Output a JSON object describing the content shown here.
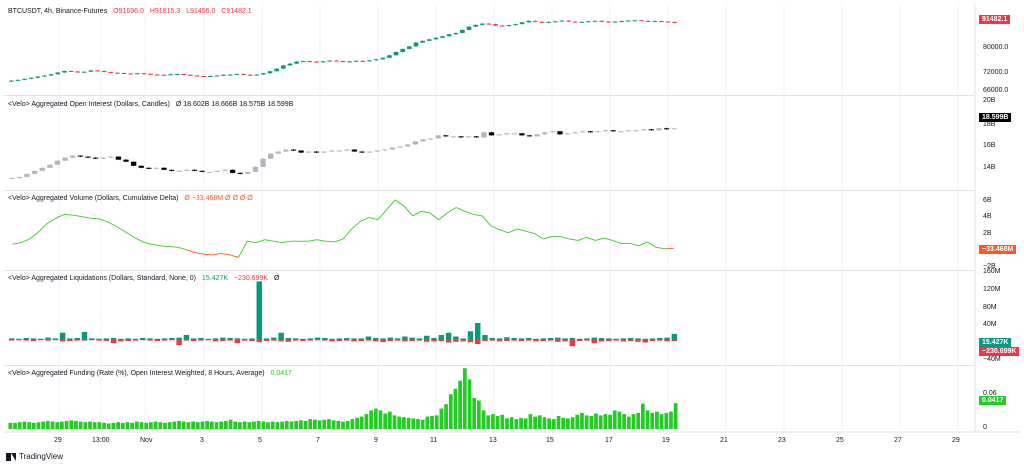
{
  "colors": {
    "up": "#089981",
    "down": "#f23645",
    "oi_up": "#b2b5be",
    "oi_down": "#000000",
    "delta": "#3bcc2a",
    "delta_neg": "#ff5722",
    "funding": "#22cc22",
    "liq_long": "#089981",
    "liq_short": "#f23645",
    "tag_delta": "#ff5722",
    "tag_funding": "#22cc22",
    "tag_oi": "#000000"
  },
  "header": {
    "symbol": "BTCUSDT, 4h, Binance-Futures",
    "o": "O91696.0",
    "h": "H91815.3",
    "l": "L91456.0",
    "c": "C91482.1"
  },
  "panes": {
    "oi_label": "<Velo> Aggregated Open Interest (Dollars, Candles)",
    "oi_values": "Ø  18.602B  18.666B  18.575B  18.599B",
    "vol_label": "<Velo> Aggregated Volume (Dollars, Cumulative Delta)",
    "vol_value": "Ø  −33.468M  Ø  Ø  Ø  Ø",
    "liq_label": "<Velo> Aggregated Liquidations (Dollars, Standard, None, 0)",
    "liq_v1": "15.427K",
    "liq_v2": "−230.699K",
    "liq_v3": "Ø",
    "fund_label": "<Velo> Aggregated Funding (Rate (%), Open Interest Weighted, 8 Hours, Average)",
    "fund_value": "0.0417"
  },
  "tags": {
    "price": "91482.1",
    "oi": "18.599B",
    "delta": "−33.468M",
    "liq_long": "15.427K",
    "liq_short": "−230.699K",
    "funding": "0.0417"
  },
  "axes": {
    "price_ticks": [
      "80000.0",
      "72000.0",
      "66000.0"
    ],
    "oi_ticks": [
      "20B",
      "18B",
      "16B",
      "14B"
    ],
    "vol_ticks": [
      "6B",
      "4B",
      "2B",
      "−2B"
    ],
    "liq_ticks": [
      "160M",
      "120M",
      "80M",
      "40M",
      "−40M"
    ],
    "fund_ticks": [
      "0.06",
      "0"
    ],
    "x_ticks": [
      "29",
      "13:00",
      "Nov",
      "3",
      "5",
      "7",
      "9",
      "11",
      "13",
      "15",
      "17",
      "19",
      "21",
      "23",
      "25",
      "27",
      "29"
    ]
  },
  "brand": "TradingView",
  "chart_data": [
    {
      "type": "candlestick",
      "title": "BTCUSDT, 4h, Binance-Futures",
      "ylim": [
        64000,
        94000
      ],
      "close": [
        68500,
        68800,
        69200,
        69600,
        70100,
        70500,
        71000,
        71700,
        72300,
        72100,
        71800,
        72000,
        72500,
        72300,
        71900,
        71600,
        71500,
        71300,
        71100,
        71400,
        71200,
        70900,
        70800,
        70700,
        71000,
        71100,
        70800,
        70500,
        70300,
        70200,
        70300,
        70500,
        70800,
        70900,
        71100,
        70800,
        70700,
        70900,
        71400,
        72200,
        73200,
        74500,
        75200,
        76000,
        76200,
        76000,
        75800,
        76100,
        76400,
        76200,
        75900,
        76100,
        76300,
        76200,
        76500,
        76900,
        77500,
        78500,
        79800,
        81000,
        82000,
        83500,
        84200,
        84800,
        85400,
        86000,
        86800,
        87300,
        88500,
        89800,
        90500,
        91000,
        90800,
        90200,
        90000,
        90400,
        90800,
        91500,
        92100,
        91700,
        91300,
        91700,
        91900,
        92200,
        91800,
        91600,
        91700,
        91900,
        92100,
        91800,
        91600,
        91800,
        92000,
        92200,
        92300,
        92100,
        91900,
        92000,
        91800,
        91600,
        91482
      ],
      "ylabel": ""
    },
    {
      "type": "candlestick",
      "title": "<Velo> Aggregated Open Interest (Dollars, Candles)",
      "ylim": [
        13200,
        20400
      ],
      "close": [
        13700,
        13800,
        14100,
        14400,
        14700,
        15000,
        15400,
        15700,
        15900,
        15800,
        15700,
        15600,
        15700,
        15800,
        15500,
        15300,
        14900,
        14700,
        14600,
        14700,
        14500,
        14400,
        14400,
        14500,
        14400,
        14300,
        14300,
        14400,
        14500,
        14200,
        14100,
        14300,
        14800,
        15600,
        16100,
        16300,
        16500,
        16400,
        16200,
        16300,
        16200,
        16300,
        16400,
        16400,
        16500,
        16300,
        16200,
        16300,
        16400,
        16500,
        16700,
        16800,
        17000,
        17300,
        17500,
        17600,
        17900,
        17800,
        17800,
        17700,
        17800,
        17700,
        18200,
        17900,
        18000,
        18100,
        18100,
        17900,
        17800,
        18000,
        18200,
        18300,
        18000,
        18100,
        18200,
        18300,
        18200,
        18300,
        18400,
        18300,
        18300,
        18400,
        18400,
        18500,
        18400,
        18600,
        18500,
        18599
      ],
      "ylabel": ""
    },
    {
      "type": "line",
      "title": "<Velo> Aggregated Volume (Dollars, Cumulative Delta)",
      "ylim": [
        -2600,
        6800
      ],
      "values": [
        500,
        700,
        1200,
        2100,
        3200,
        3900,
        4400,
        4300,
        4100,
        3900,
        3800,
        3400,
        2800,
        2100,
        1400,
        800,
        500,
        300,
        200,
        100,
        -200,
        -600,
        -800,
        -900,
        -700,
        -900,
        -1200,
        900,
        700,
        1100,
        900,
        700,
        900,
        900,
        900,
        1100,
        900,
        800,
        1200,
        2500,
        3500,
        4000,
        3700,
        5000,
        6300,
        5500,
        4200,
        4800,
        4600,
        3700,
        4600,
        5300,
        4800,
        4400,
        4200,
        2900,
        2400,
        2000,
        2500,
        2200,
        1900,
        1200,
        1500,
        1500,
        1200,
        1000,
        1400,
        1000,
        1300,
        1000,
        600,
        600,
        300,
        800,
        100,
        -100,
        -33
      ],
      "ylabel": ""
    },
    {
      "type": "bar",
      "title": "<Velo> Aggregated Liquidations (Dollars, Standard, None, 0)",
      "ylim": [
        -60,
        180
      ],
      "series": [
        {
          "values": [
            3,
            2,
            4,
            3,
            2,
            5,
            3,
            18,
            3,
            4,
            20,
            3,
            2,
            3,
            4,
            2,
            3,
            2,
            4,
            3,
            2,
            3,
            4,
            5,
            12,
            3,
            4,
            2,
            3,
            5,
            4,
            3,
            2,
            3,
            155,
            3,
            5,
            18,
            4,
            3,
            2,
            3,
            5,
            4,
            2,
            3,
            4,
            3,
            3,
            8,
            4,
            3,
            5,
            3,
            8,
            5,
            3,
            10,
            4,
            12,
            18,
            8,
            3,
            22,
            44,
            12,
            4,
            3,
            6,
            4,
            3,
            4,
            2,
            3,
            4,
            5,
            3,
            4,
            2,
            3,
            5,
            4,
            3,
            2,
            3,
            4,
            3,
            2,
            3,
            4,
            5,
            15
          ]
        },
        {
          "values": [
            -3,
            -2,
            -3,
            -4,
            -2,
            -3,
            -2,
            -5,
            -4,
            -3,
            -3,
            -2,
            -3,
            -4,
            -10,
            -5,
            -4,
            -3,
            -2,
            -3,
            -4,
            -3,
            -2,
            -15,
            -3,
            -4,
            -3,
            -2,
            -5,
            -4,
            -3,
            -10,
            -3,
            -4,
            -7,
            -4,
            -3,
            -5,
            -6,
            -3,
            -4,
            -3,
            -2,
            -3,
            -5,
            -4,
            -3,
            -5,
            -4,
            -3,
            -5,
            -7,
            -4,
            -3,
            -5,
            -4,
            -3,
            -6,
            -5,
            -4,
            -8,
            -6,
            -5,
            -7,
            -12,
            -4,
            -3,
            -5,
            -4,
            -3,
            -4,
            -3,
            -5,
            -4,
            -3,
            -6,
            -5,
            -18,
            -4,
            -3,
            -10,
            -5,
            -4,
            -3,
            -5,
            -4,
            -6,
            -8,
            -4,
            -3,
            -5,
            -4
          ]
        }
      ],
      "ylabel": ""
    },
    {
      "type": "bar",
      "title": "<Velo> Aggregated Funding (Rate (%), Open Interest Weighted, 8 Hours, Average)",
      "ylim": [
        0,
        0.1
      ],
      "values": [
        0.01,
        0.01,
        0.011,
        0.012,
        0.011,
        0.01,
        0.011,
        0.012,
        0.013,
        0.012,
        0.011,
        0.012,
        0.013,
        0.014,
        0.013,
        0.012,
        0.011,
        0.012,
        0.011,
        0.011,
        0.01,
        0.009,
        0.01,
        0.011,
        0.01,
        0.011,
        0.01,
        0.012,
        0.011,
        0.01,
        0.011,
        0.012,
        0.011,
        0.01,
        0.011,
        0.012,
        0.013,
        0.012,
        0.011,
        0.012,
        0.011,
        0.012,
        0.013,
        0.012,
        0.011,
        0.012,
        0.013,
        0.015,
        0.012,
        0.011,
        0.012,
        0.011,
        0.012,
        0.013,
        0.012,
        0.011,
        0.012,
        0.011,
        0.012,
        0.013,
        0.012,
        0.013,
        0.014,
        0.013,
        0.016,
        0.015,
        0.014,
        0.015,
        0.016,
        0.014,
        0.013,
        0.012,
        0.013,
        0.016,
        0.018,
        0.02,
        0.024,
        0.03,
        0.033,
        0.03,
        0.025,
        0.028,
        0.022,
        0.02,
        0.019,
        0.018,
        0.017,
        0.016,
        0.015,
        0.02,
        0.021,
        0.022,
        0.033,
        0.04,
        0.056,
        0.065,
        0.078,
        0.098,
        0.08,
        0.05,
        0.046,
        0.03,
        0.022,
        0.024,
        0.021,
        0.023,
        0.017,
        0.019,
        0.016,
        0.018,
        0.017,
        0.024,
        0.02,
        0.022,
        0.019,
        0.017,
        0.016,
        0.021,
        0.018,
        0.017,
        0.019,
        0.023,
        0.026,
        0.022,
        0.021,
        0.025,
        0.022,
        0.024,
        0.023,
        0.03,
        0.028,
        0.024,
        0.02,
        0.024,
        0.026,
        0.041,
        0.03,
        0.026,
        0.028,
        0.024,
        0.026,
        0.028,
        0.0417
      ],
      "ylabel": ""
    }
  ]
}
